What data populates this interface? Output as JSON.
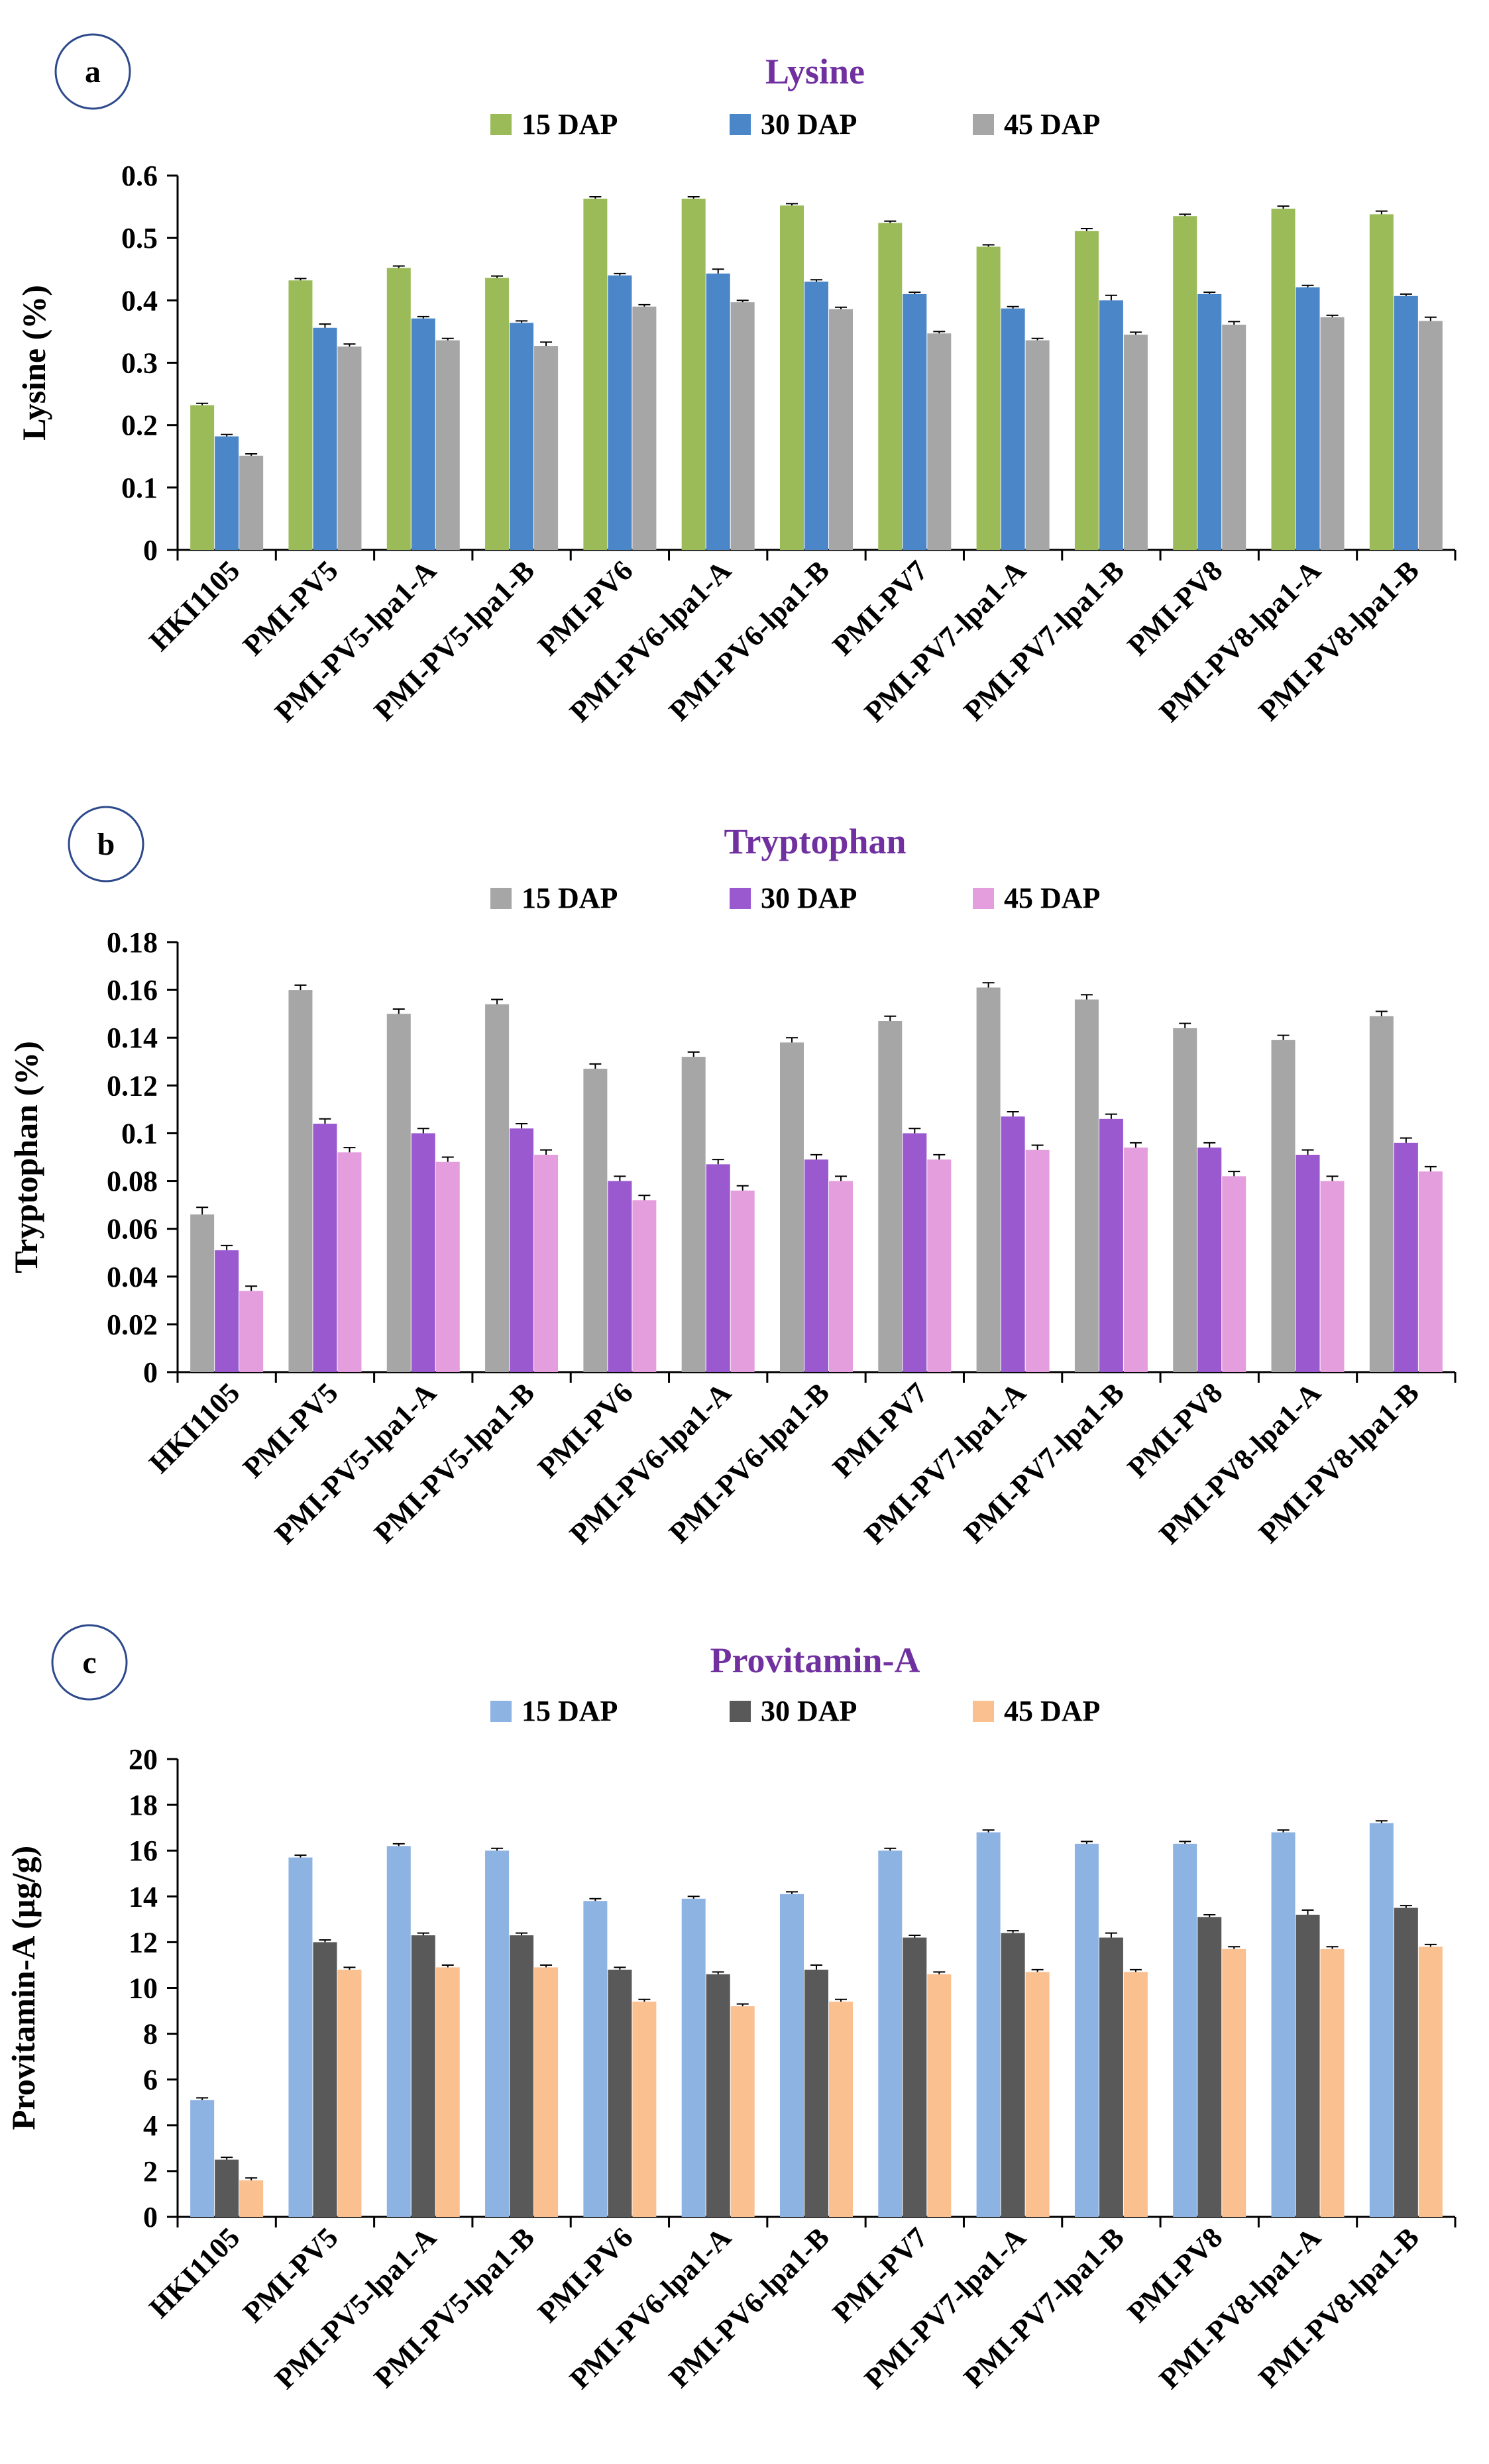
{
  "chart_data": [
    {
      "type": "bar",
      "panel_label": "a",
      "title": "Lysine",
      "title_color": "#7030a0",
      "xlabel": "",
      "ylabel": "Lysine  (%)",
      "ylim": [
        0,
        0.6
      ],
      "yticks": [
        "0",
        "0.1",
        "0.2",
        "0.3",
        "0.4",
        "0.5",
        "0.6"
      ],
      "grid": false,
      "legend_position": "top",
      "categories": [
        "HKI1105",
        "PMI-PV5",
        "PMI-PV5-lpa1-A",
        "PMI-PV5-lpa1-B",
        "PMI-PV6",
        "PMI-PV6-lpa1-A",
        "PMI-PV6-lpa1-B",
        "PMI-PV7",
        "PMI-PV7-lpa1-A",
        "PMI-PV7-lpa1-B",
        "PMI-PV8",
        "PMI-PV8-lpa1-A",
        "PMI-PV8-lpa1-B"
      ],
      "series": [
        {
          "name": "15 DAP",
          "color": "#9bbb59",
          "values": [
            0.232,
            0.432,
            0.452,
            0.436,
            0.563,
            0.563,
            0.552,
            0.524,
            0.486,
            0.511,
            0.535,
            0.547,
            0.538
          ],
          "errors": [
            0.003,
            0.003,
            0.003,
            0.003,
            0.003,
            0.003,
            0.003,
            0.003,
            0.003,
            0.004,
            0.003,
            0.004,
            0.005
          ]
        },
        {
          "name": "30 DAP",
          "color": "#4a86c8",
          "values": [
            0.182,
            0.356,
            0.371,
            0.364,
            0.44,
            0.443,
            0.43,
            0.41,
            0.387,
            0.4,
            0.41,
            0.421,
            0.407
          ],
          "errors": [
            0.003,
            0.006,
            0.003,
            0.003,
            0.003,
            0.007,
            0.003,
            0.003,
            0.003,
            0.008,
            0.003,
            0.003,
            0.003
          ]
        },
        {
          "name": "45 DAP",
          "color": "#a6a6a6",
          "values": [
            0.151,
            0.326,
            0.336,
            0.327,
            0.39,
            0.397,
            0.386,
            0.347,
            0.336,
            0.345,
            0.361,
            0.373,
            0.367
          ],
          "errors": [
            0.003,
            0.004,
            0.003,
            0.006,
            0.003,
            0.003,
            0.003,
            0.003,
            0.003,
            0.004,
            0.005,
            0.003,
            0.006
          ]
        }
      ]
    },
    {
      "type": "bar",
      "panel_label": "b",
      "title": "Tryptophan",
      "title_color": "#7030a0",
      "xlabel": "",
      "ylabel": "Tryptophan (%)",
      "ylim": [
        0,
        0.18
      ],
      "yticks": [
        "0",
        "0.02",
        "0.04",
        "0.06",
        "0.08",
        "0.1",
        "0.12",
        "0.14",
        "0.16",
        "0.18"
      ],
      "grid": false,
      "legend_position": "top",
      "categories": [
        "HKI1105",
        "PMI-PV5",
        "PMI-PV5-lpa1-A",
        "PMI-PV5-lpa1-B",
        "PMI-PV6",
        "PMI-PV6-lpa1-A",
        "PMI-PV6-lpa1-B",
        "PMI-PV7",
        "PMI-PV7-lpa1-A",
        "PMI-PV7-lpa1-B",
        "PMI-PV8",
        "PMI-PV8-lpa1-A",
        "PMI-PV8-lpa1-B"
      ],
      "series": [
        {
          "name": "15 DAP",
          "color": "#a6a6a6",
          "values": [
            0.066,
            0.16,
            0.15,
            0.154,
            0.127,
            0.132,
            0.138,
            0.147,
            0.161,
            0.156,
            0.144,
            0.139,
            0.149
          ],
          "errors": [
            0.003,
            0.002,
            0.002,
            0.002,
            0.002,
            0.002,
            0.002,
            0.002,
            0.002,
            0.002,
            0.002,
            0.002,
            0.002
          ]
        },
        {
          "name": "30 DAP",
          "color": "#9b59d0",
          "values": [
            0.051,
            0.104,
            0.1,
            0.102,
            0.08,
            0.087,
            0.089,
            0.1,
            0.107,
            0.106,
            0.094,
            0.091,
            0.096
          ],
          "errors": [
            0.002,
            0.002,
            0.002,
            0.002,
            0.002,
            0.002,
            0.002,
            0.002,
            0.002,
            0.002,
            0.002,
            0.002,
            0.002
          ]
        },
        {
          "name": "45 DAP",
          "color": "#e49edd",
          "values": [
            0.034,
            0.092,
            0.088,
            0.091,
            0.072,
            0.076,
            0.08,
            0.089,
            0.093,
            0.094,
            0.082,
            0.08,
            0.084
          ],
          "errors": [
            0.002,
            0.002,
            0.002,
            0.002,
            0.002,
            0.002,
            0.002,
            0.002,
            0.002,
            0.002,
            0.002,
            0.002,
            0.002
          ]
        }
      ]
    },
    {
      "type": "bar",
      "panel_label": "c",
      "title": "Provitamin-A",
      "title_color": "#7030a0",
      "xlabel": "",
      "ylabel": "Provitamin-A (µg/g)",
      "ylim": [
        0,
        20
      ],
      "yticks": [
        "0",
        "2",
        "4",
        "6",
        "8",
        "10",
        "12",
        "14",
        "16",
        "18",
        "20"
      ],
      "grid": false,
      "legend_position": "top",
      "categories": [
        "HKI1105",
        "PMI-PV5",
        "PMI-PV5-lpa1-A",
        "PMI-PV5-lpa1-B",
        "PMI-PV6",
        "PMI-PV6-lpa1-A",
        "PMI-PV6-lpa1-B",
        "PMI-PV7",
        "PMI-PV7-lpa1-A",
        "PMI-PV7-lpa1-B",
        "PMI-PV8",
        "PMI-PV8-lpa1-A",
        "PMI-PV8-lpa1-B"
      ],
      "series": [
        {
          "name": "15 DAP",
          "color": "#8db3e2",
          "values": [
            5.1,
            15.7,
            16.2,
            16.0,
            13.8,
            13.9,
            14.1,
            16.0,
            16.8,
            16.3,
            16.3,
            16.8,
            17.2
          ],
          "errors": [
            0.1,
            0.1,
            0.1,
            0.1,
            0.1,
            0.1,
            0.1,
            0.1,
            0.1,
            0.1,
            0.1,
            0.1,
            0.1
          ]
        },
        {
          "name": "30 DAP",
          "color": "#595959",
          "values": [
            2.5,
            12.0,
            12.3,
            12.3,
            10.8,
            10.6,
            10.8,
            12.2,
            12.4,
            12.2,
            13.1,
            13.2,
            13.5
          ],
          "errors": [
            0.1,
            0.1,
            0.1,
            0.1,
            0.1,
            0.1,
            0.2,
            0.1,
            0.1,
            0.2,
            0.1,
            0.2,
            0.1
          ]
        },
        {
          "name": "45 DAP",
          "color": "#fac090",
          "values": [
            1.6,
            10.8,
            10.9,
            10.9,
            9.4,
            9.2,
            9.4,
            10.6,
            10.7,
            10.7,
            11.7,
            11.7,
            11.8
          ],
          "errors": [
            0.1,
            0.1,
            0.1,
            0.1,
            0.1,
            0.1,
            0.1,
            0.1,
            0.1,
            0.1,
            0.1,
            0.1,
            0.1
          ]
        }
      ]
    }
  ]
}
